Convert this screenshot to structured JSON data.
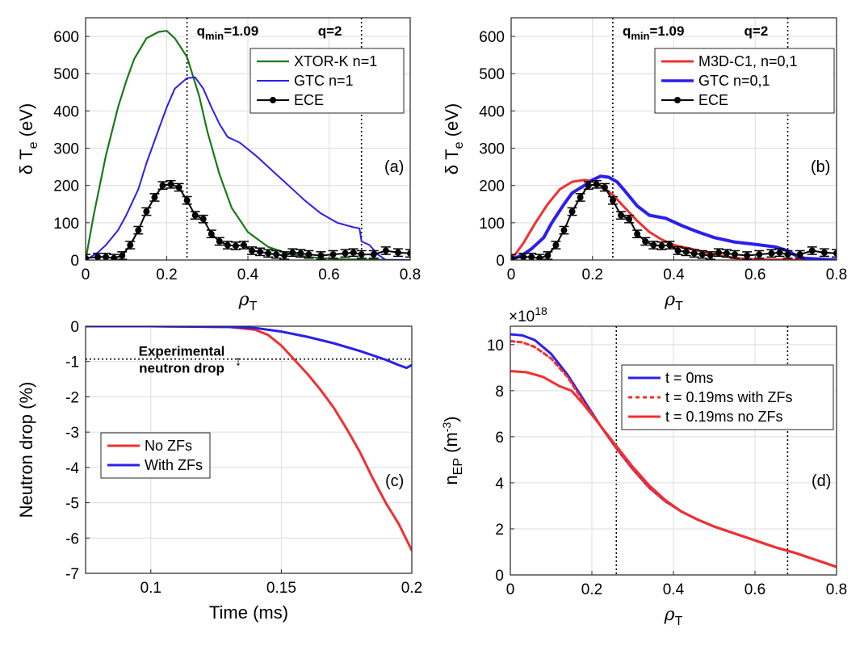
{
  "colors": {
    "green": "#1a7a1a",
    "blue": "#2b1ef0",
    "red": "#f03030",
    "black": "#000000"
  },
  "chart_data": [
    {
      "panel": "a",
      "type": "line",
      "panel_label": "(a)",
      "xlabel": "ρ",
      "xlabel_sub": "T",
      "ylabel": "δ T",
      "ylabel_sub": "e",
      "ylabel_unit": " (eV)",
      "xlim": [
        0,
        0.8
      ],
      "ylim": [
        0,
        650
      ],
      "xticks": [
        0,
        0.2,
        0.4,
        0.6,
        0.8
      ],
      "xtick_labels": [
        "0",
        "0.2",
        "0.4",
        "0.6",
        "0.8"
      ],
      "yticks": [
        0,
        100,
        200,
        300,
        400,
        500,
        600
      ],
      "ytick_labels": [
        "0",
        "100",
        "200",
        "300",
        "400",
        "500",
        "600"
      ],
      "vlines": [
        0.25,
        0.68
      ],
      "annotations": [
        {
          "base": "q",
          "sub": "min",
          "rest": "=1.09"
        },
        {
          "base": "q=2",
          "sub": "",
          "rest": ""
        }
      ],
      "legend": [
        "XTOR-K n=1",
        "GTC n=1",
        "ECE"
      ],
      "series": [
        {
          "name": "XTOR-K n=1",
          "color": "green",
          "width": 2.2,
          "x": [
            0,
            0.02,
            0.05,
            0.08,
            0.1,
            0.12,
            0.15,
            0.18,
            0.2,
            0.22,
            0.25,
            0.28,
            0.3,
            0.33,
            0.36,
            0.4,
            0.45,
            0.5,
            0.55,
            0.6,
            0.65,
            0.7,
            0.8
          ],
          "y": [
            0,
            120,
            280,
            410,
            480,
            540,
            595,
            612,
            615,
            595,
            545,
            440,
            345,
            230,
            140,
            75,
            35,
            17,
            8,
            4,
            2,
            1,
            0
          ]
        },
        {
          "name": "GTC n=1",
          "color": "blue",
          "width": 2,
          "x": [
            0,
            0.03,
            0.05,
            0.08,
            0.1,
            0.13,
            0.15,
            0.18,
            0.2,
            0.22,
            0.25,
            0.27,
            0.29,
            0.31,
            0.33,
            0.35,
            0.38,
            0.42,
            0.46,
            0.5,
            0.54,
            0.58,
            0.62,
            0.66,
            0.675,
            0.68,
            0.7,
            0.72,
            0.74,
            0.8
          ],
          "y": [
            0,
            20,
            40,
            80,
            120,
            190,
            260,
            350,
            410,
            460,
            488,
            490,
            460,
            410,
            365,
            330,
            315,
            280,
            240,
            200,
            160,
            125,
            100,
            88,
            85,
            50,
            40,
            15,
            0,
            0
          ]
        },
        {
          "name": "ECE",
          "color": "black",
          "width": 2,
          "markers": true,
          "errorbars": true,
          "x": [
            0,
            0.03,
            0.05,
            0.07,
            0.09,
            0.11,
            0.13,
            0.15,
            0.17,
            0.19,
            0.21,
            0.23,
            0.25,
            0.27,
            0.29,
            0.31,
            0.33,
            0.35,
            0.37,
            0.39,
            0.41,
            0.43,
            0.45,
            0.47,
            0.49,
            0.51,
            0.53,
            0.55,
            0.58,
            0.61,
            0.64,
            0.66,
            0.68,
            0.71,
            0.74,
            0.77,
            0.8
          ],
          "y": [
            5,
            8,
            8,
            5,
            12,
            40,
            80,
            130,
            168,
            200,
            203,
            195,
            160,
            120,
            110,
            70,
            50,
            40,
            38,
            40,
            25,
            22,
            18,
            15,
            12,
            20,
            18,
            15,
            12,
            15,
            18,
            20,
            15,
            15,
            25,
            20,
            18
          ],
          "err": 10
        }
      ]
    },
    {
      "panel": "b",
      "type": "line",
      "panel_label": "(b)",
      "xlabel": "ρ",
      "xlabel_sub": "T",
      "ylabel": "δ T",
      "ylabel_sub": "e",
      "ylabel_unit": " (eV)",
      "xlim": [
        0,
        0.8
      ],
      "ylim": [
        0,
        650
      ],
      "xticks": [
        0,
        0.2,
        0.4,
        0.6,
        0.8
      ],
      "xtick_labels": [
        "0",
        "0.2",
        "0.4",
        "0.6",
        "0.8"
      ],
      "yticks": [
        0,
        100,
        200,
        300,
        400,
        500,
        600
      ],
      "ytick_labels": [
        "0",
        "100",
        "200",
        "300",
        "400",
        "500",
        "600"
      ],
      "vlines": [
        0.25,
        0.68
      ],
      "annotations": [
        {
          "base": "q",
          "sub": "min",
          "rest": "=1.09"
        },
        {
          "base": "q=2",
          "sub": "",
          "rest": ""
        }
      ],
      "legend": [
        "M3D-C1, n=0,1",
        "GTC n=0,1",
        "ECE"
      ],
      "series": [
        {
          "name": "M3D-C1, n=0,1",
          "color": "red",
          "width": 3,
          "x": [
            0,
            0.03,
            0.06,
            0.09,
            0.12,
            0.15,
            0.18,
            0.2,
            0.22,
            0.25,
            0.28,
            0.31,
            0.34,
            0.37,
            0.4,
            0.45,
            0.5,
            0.55,
            0.6,
            0.65,
            0.7,
            0.8
          ],
          "y": [
            0,
            45,
            100,
            150,
            190,
            210,
            215,
            212,
            200,
            175,
            140,
            105,
            75,
            55,
            40,
            28,
            15,
            5,
            2,
            1,
            0,
            0
          ]
        },
        {
          "name": "GTC n=0,1",
          "color": "blue",
          "width": 4,
          "x": [
            0,
            0.03,
            0.05,
            0.08,
            0.1,
            0.13,
            0.15,
            0.18,
            0.2,
            0.22,
            0.24,
            0.26,
            0.28,
            0.31,
            0.34,
            0.38,
            0.42,
            0.46,
            0.5,
            0.55,
            0.6,
            0.65,
            0.68,
            0.7,
            0.72,
            0.8
          ],
          "y": [
            0,
            15,
            30,
            60,
            100,
            150,
            180,
            200,
            215,
            225,
            222,
            210,
            185,
            145,
            120,
            112,
            92,
            75,
            60,
            48,
            42,
            35,
            25,
            12,
            5,
            0
          ]
        },
        {
          "name": "ECE",
          "color": "black",
          "width": 2,
          "markers": true,
          "errorbars": true,
          "x": [
            0,
            0.03,
            0.05,
            0.07,
            0.09,
            0.11,
            0.13,
            0.15,
            0.17,
            0.19,
            0.21,
            0.23,
            0.25,
            0.27,
            0.29,
            0.31,
            0.33,
            0.35,
            0.37,
            0.39,
            0.41,
            0.43,
            0.45,
            0.47,
            0.49,
            0.51,
            0.53,
            0.55,
            0.58,
            0.61,
            0.64,
            0.66,
            0.68,
            0.71,
            0.74,
            0.77,
            0.8
          ],
          "y": [
            5,
            8,
            8,
            5,
            12,
            40,
            80,
            130,
            168,
            200,
            203,
            195,
            160,
            120,
            110,
            70,
            50,
            40,
            38,
            40,
            25,
            22,
            18,
            15,
            12,
            20,
            18,
            15,
            12,
            15,
            18,
            20,
            15,
            15,
            25,
            20,
            18
          ],
          "err": 10
        }
      ]
    },
    {
      "panel": "c",
      "type": "line",
      "panel_label": "(c)",
      "xlabel": "Time (ms)",
      "ylabel": "Neutron drop (%)",
      "xlim": [
        0.075,
        0.2
      ],
      "ylim": [
        -7,
        0
      ],
      "xticks": [
        0.1,
        0.15,
        0.2
      ],
      "xtick_labels": [
        "0.1",
        "0.15",
        "0.2"
      ],
      "yticks": [
        -7,
        -6,
        -5,
        -4,
        -3,
        -2,
        -1,
        0
      ],
      "ytick_labels": [
        "-7",
        "-6",
        "-5",
        "-4",
        "-3",
        "-2",
        "-1",
        "0"
      ],
      "hline": -0.93,
      "annotations": [
        {
          "line1": "Experimental",
          "line2": "neutron drop",
          "arrow": "↕"
        }
      ],
      "legend": [
        "No ZFs",
        "With ZFs"
      ],
      "series": [
        {
          "name": "No ZFs",
          "color": "red",
          "width": 3,
          "x": [
            0.075,
            0.1,
            0.13,
            0.14,
            0.145,
            0.15,
            0.155,
            0.16,
            0.165,
            0.17,
            0.175,
            0.18,
            0.185,
            0.19,
            0.195,
            0.2
          ],
          "y": [
            0,
            0,
            -0.02,
            -0.1,
            -0.25,
            -0.55,
            -0.95,
            -1.35,
            -1.8,
            -2.3,
            -2.9,
            -3.55,
            -4.3,
            -5,
            -5.6,
            -6.35
          ]
        },
        {
          "name": "With ZFs",
          "color": "blue",
          "width": 3,
          "x": [
            0.075,
            0.1,
            0.13,
            0.14,
            0.15,
            0.16,
            0.17,
            0.18,
            0.19,
            0.195,
            0.198,
            0.2
          ],
          "y": [
            0,
            0,
            -0.02,
            -0.05,
            -0.15,
            -0.3,
            -0.48,
            -0.7,
            -0.95,
            -1.1,
            -1.18,
            -1.1
          ]
        }
      ]
    },
    {
      "panel": "d",
      "type": "line",
      "panel_label": "(d)",
      "xlabel": "ρ",
      "xlabel_sub": "T",
      "ylabel": "n",
      "ylabel_sub": "EP",
      "ylabel_unit": " (m",
      "ylabel_sup": "-3",
      "ylabel_close": ")",
      "exponent": "×10",
      "exponent_sup": "18",
      "xlim": [
        0,
        0.8
      ],
      "ylim": [
        0,
        10.8
      ],
      "xticks": [
        0,
        0.2,
        0.4,
        0.6,
        0.8
      ],
      "xtick_labels": [
        "0",
        "0.2",
        "0.4",
        "0.6",
        "0.8"
      ],
      "yticks": [
        0,
        2,
        4,
        6,
        8,
        10
      ],
      "ytick_labels": [
        "0",
        "2",
        "4",
        "6",
        "8",
        "10"
      ],
      "vlines": [
        0.26,
        0.68
      ],
      "legend": [
        "t = 0ms",
        "t = 0.19ms with ZFs",
        "t = 0.19ms no ZFs"
      ],
      "series": [
        {
          "name": "t = 0ms",
          "color": "blue",
          "width": 3,
          "x": [
            0,
            0.03,
            0.06,
            0.1,
            0.14,
            0.18,
            0.22,
            0.26,
            0.3,
            0.34,
            0.38,
            0.42,
            0.46,
            0.5,
            0.55,
            0.6,
            0.65,
            0.7,
            0.75,
            0.8
          ],
          "y": [
            10.45,
            10.4,
            10.2,
            9.6,
            8.7,
            7.6,
            6.5,
            5.5,
            4.6,
            3.8,
            3.2,
            2.75,
            2.4,
            2.1,
            1.8,
            1.5,
            1.2,
            0.95,
            0.65,
            0.35
          ]
        },
        {
          "name": "t = 0.19ms with ZFs",
          "color": "red",
          "width": 3,
          "dashed": true,
          "x": [
            0,
            0.03,
            0.06,
            0.1,
            0.14,
            0.18,
            0.22,
            0.26,
            0.3,
            0.34,
            0.38,
            0.42,
            0.46,
            0.5,
            0.55,
            0.6,
            0.65,
            0.7,
            0.75,
            0.8
          ],
          "y": [
            10.15,
            10.1,
            9.9,
            9.4,
            8.6,
            7.5,
            6.5,
            5.5,
            4.6,
            3.8,
            3.2,
            2.75,
            2.4,
            2.1,
            1.8,
            1.5,
            1.2,
            0.95,
            0.65,
            0.35
          ]
        },
        {
          "name": "t = 0.19ms no ZFs",
          "color": "red",
          "width": 3,
          "x": [
            0,
            0.04,
            0.08,
            0.12,
            0.15,
            0.18,
            0.22,
            0.26,
            0.3,
            0.34,
            0.38,
            0.42,
            0.46,
            0.5,
            0.55,
            0.6,
            0.65,
            0.7,
            0.75,
            0.8
          ],
          "y": [
            8.85,
            8.8,
            8.6,
            8.2,
            8.0,
            7.4,
            6.5,
            5.6,
            4.7,
            3.9,
            3.25,
            2.75,
            2.4,
            2.1,
            1.8,
            1.5,
            1.2,
            0.95,
            0.65,
            0.35
          ]
        }
      ]
    }
  ]
}
